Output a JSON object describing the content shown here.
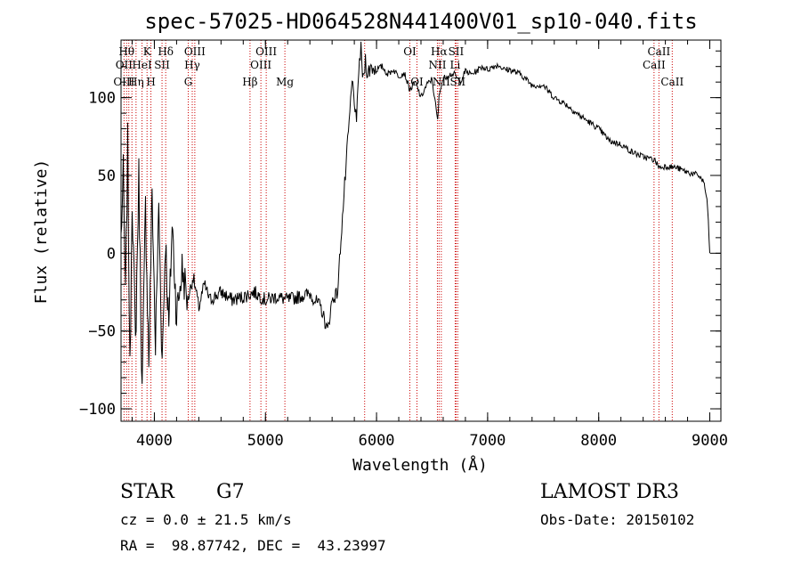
{
  "chart_data": {
    "type": "line",
    "title": "spec-57025-HD064528N441400V01_sp10-040.fits",
    "xlabel": "Wavelength (Å)",
    "ylabel": "Flux (relative)",
    "xlim": [
      3700,
      9100
    ],
    "ylim": [
      -108,
      137
    ],
    "xticks": [
      4000,
      5000,
      6000,
      7000,
      8000,
      9000
    ],
    "yticks": [
      -100,
      -50,
      0,
      50,
      100
    ],
    "series": [
      {
        "name": "spectrum",
        "x": [
          3700,
          3720,
          3740,
          3760,
          3780,
          3800,
          3830,
          3860,
          3890,
          3920,
          3950,
          3980,
          4010,
          4040,
          4070,
          4100,
          4130,
          4160,
          4200,
          4250,
          4300,
          4350,
          4400,
          4450,
          4500,
          4600,
          4700,
          4800,
          4900,
          5000,
          5100,
          5200,
          5300,
          5400,
          5500,
          5560,
          5600,
          5650,
          5680,
          5700,
          5720,
          5740,
          5760,
          5780,
          5800,
          5820,
          5840,
          5860,
          5880,
          5900,
          5920,
          5950,
          6000,
          6050,
          6100,
          6150,
          6200,
          6250,
          6300,
          6350,
          6400,
          6450,
          6500,
          6550,
          6563,
          6580,
          6600,
          6650,
          6700,
          6750,
          6800,
          6850,
          6900,
          6950,
          7000,
          7050,
          7100,
          7150,
          7200,
          7300,
          7400,
          7500,
          7600,
          7700,
          7800,
          7900,
          8000,
          8100,
          8200,
          8300,
          8400,
          8500,
          8550,
          8600,
          8700,
          8800,
          8900,
          8950,
          8980,
          9000
        ],
        "y": [
          10,
          50,
          -30,
          70,
          -80,
          40,
          -60,
          50,
          -90,
          30,
          -70,
          40,
          -60,
          30,
          -70,
          10,
          -50,
          20,
          -40,
          -10,
          -30,
          -15,
          -35,
          -20,
          -30,
          -25,
          -30,
          -28,
          -25,
          -30,
          -28,
          -30,
          -28,
          -26,
          -35,
          -50,
          -30,
          -25,
          10,
          30,
          50,
          70,
          90,
          110,
          100,
          80,
          120,
          130,
          110,
          125,
          115,
          120,
          118,
          120,
          115,
          118,
          114,
          116,
          105,
          110,
          100,
          108,
          112,
          85,
          100,
          108,
          112,
          115,
          115,
          110,
          117,
          115,
          117,
          120,
          118,
          120,
          121,
          118,
          118,
          115,
          108,
          108,
          100,
          96,
          90,
          85,
          80,
          72,
          70,
          65,
          62,
          60,
          55,
          56,
          55,
          52,
          50,
          45,
          30,
          0
        ]
      }
    ],
    "line_labels": [
      {
        "wl": 3750,
        "row": 1,
        "text": "Hθ"
      },
      {
        "wl": 3727,
        "row": 2,
        "text": "OII"
      },
      {
        "wl": 3727,
        "row": 3,
        "text": "OIII"
      },
      {
        "wl": 3889,
        "row": 2,
        "text": "HeI"
      },
      {
        "wl": 3835,
        "row": 3,
        "text": "Hη"
      },
      {
        "wl": 3934,
        "row": 1,
        "text": "K"
      },
      {
        "wl": 3969,
        "row": 3,
        "text": "H"
      },
      {
        "wl": 4069,
        "row": 2,
        "text": "SII"
      },
      {
        "wl": 4102,
        "row": 1,
        "text": "Hδ"
      },
      {
        "wl": 4341,
        "row": 2,
        "text": "Hγ"
      },
      {
        "wl": 4364,
        "row": 1,
        "text": "OIII"
      },
      {
        "wl": 4305,
        "row": 3,
        "text": "G"
      },
      {
        "wl": 4861,
        "row": 3,
        "text": "Hβ"
      },
      {
        "wl": 5007,
        "row": 1,
        "text": "OIII"
      },
      {
        "wl": 4959,
        "row": 2,
        "text": "OIII"
      },
      {
        "wl": 5175,
        "row": 3,
        "text": "Mg"
      },
      {
        "wl": 6300,
        "row": 1,
        "text": "OI"
      },
      {
        "wl": 6364,
        "row": 3,
        "text": "OI"
      },
      {
        "wl": 6563,
        "row": 1,
        "text": "Hα"
      },
      {
        "wl": 6548,
        "row": 2,
        "text": "NII"
      },
      {
        "wl": 6583,
        "row": 3,
        "text": "NII"
      },
      {
        "wl": 6716,
        "row": 1,
        "text": "SII"
      },
      {
        "wl": 6708,
        "row": 2,
        "text": "Li"
      },
      {
        "wl": 6731,
        "row": 3,
        "text": "SII"
      },
      {
        "wl": 8542,
        "row": 1,
        "text": "CaII"
      },
      {
        "wl": 8498,
        "row": 2,
        "text": "CaII"
      },
      {
        "wl": 8662,
        "row": 3,
        "text": "CaII"
      }
    ],
    "line_positions": [
      3727,
      3750,
      3770,
      3798,
      3835,
      3889,
      3934,
      3969,
      4069,
      4102,
      4305,
      4341,
      4364,
      4861,
      4959,
      5007,
      5175,
      5893,
      6300,
      6364,
      6548,
      6563,
      6583,
      6708,
      6716,
      6731,
      8498,
      8542,
      8662
    ]
  },
  "info": {
    "class_label": "STAR",
    "subclass": "G7",
    "cz": "cz = 0.0 ± 21.5 km/s",
    "radec": "RA =  98.87742, DEC =  43.23997",
    "survey": "LAMOST DR3",
    "obs_date": "Obs-Date: 20150102"
  },
  "colors": {
    "spectrum": "#000000",
    "line_marker": "#cc0000"
  }
}
